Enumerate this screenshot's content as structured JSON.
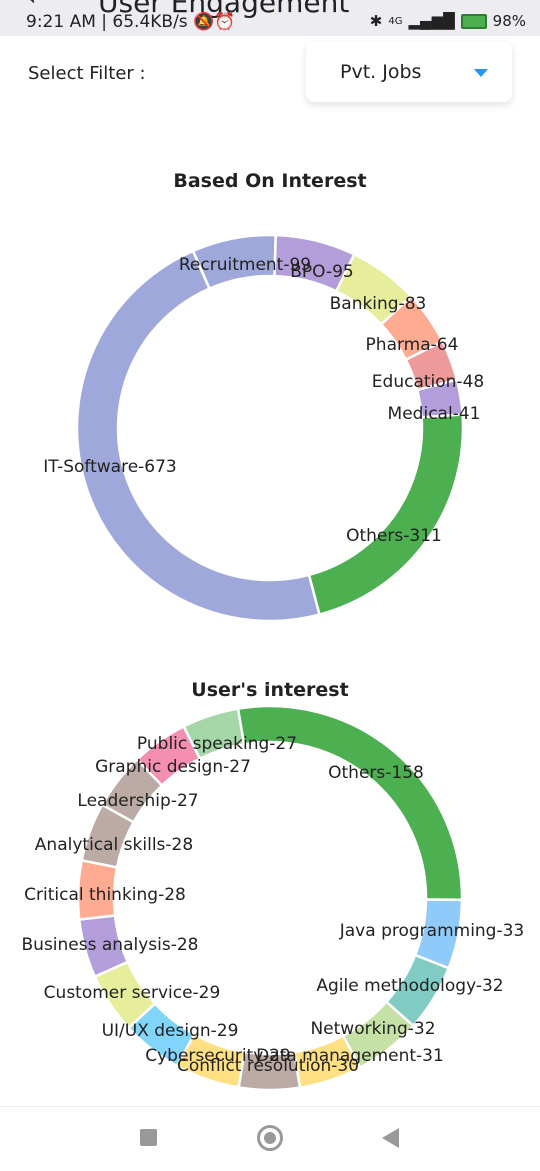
{
  "status_bar": {
    "time_speed": "9:21 AM | 65.4KB/s",
    "battery": "98%",
    "network": "4G"
  },
  "header": {
    "title_peek": "User Engagement"
  },
  "filter": {
    "label": "Select Filter :",
    "selected": "Pvt. Jobs"
  },
  "chart_data": [
    {
      "type": "pie",
      "title": "Based On Interest",
      "labels": [
        "Recruitment",
        "BPO",
        "Banking",
        "Pharma",
        "Education",
        "Medical",
        "Others",
        "IT-Software"
      ],
      "values": [
        99,
        95,
        83,
        64,
        48,
        41,
        311,
        673
      ],
      "display_labels": [
        "Recruitment-99",
        "BPO-95",
        "Banking-83",
        "Pharma-64",
        "Education-48",
        "Medical-41",
        "Others-311",
        "IT-Software-673"
      ],
      "colors": [
        "#9fa8da",
        "#b39ddb",
        "#e6ee9c",
        "#ffab91",
        "#ef9a9a",
        "#b39ddb",
        "#4caf50",
        "#9fa8da"
      ]
    },
    {
      "type": "pie",
      "title": "User's interest",
      "labels": [
        "Others",
        "Java programming",
        "Agile methodology",
        "Networking",
        "Conflict resolution",
        "Cybersecurity",
        "Data management",
        "UI/UX design",
        "Customer service",
        "Business analysis",
        "Critical thinking",
        "Analytical skills",
        "Leadership",
        "Graphic design",
        "Public speaking"
      ],
      "values": [
        158,
        33,
        32,
        32,
        30,
        29,
        31,
        29,
        29,
        28,
        28,
        28,
        27,
        27,
        27
      ],
      "display_labels": [
        "Others-158",
        "Java programming-33",
        "Agile methodology-32",
        "Networking-32",
        "Conflict resolution-30",
        "Cybersecurity-29",
        "Data management-31",
        "UI/UX design-29",
        "Customer service-29",
        "Business analysis-28",
        "Critical thinking-28",
        "Analytical skills-28",
        "Leadership-27",
        "Graphic design-27",
        "Public speaking-27"
      ],
      "colors": [
        "#4caf50",
        "#90caf9",
        "#80cbc4",
        "#c5e1a5",
        "#ffe082",
        "#bcaaa4",
        "#ffe082",
        "#81d4fa",
        "#e6ee9c",
        "#b39ddb",
        "#ffab91",
        "#bcaaa4",
        "#bcaaa4",
        "#f48fb1",
        "#a5d6a7"
      ]
    }
  ]
}
